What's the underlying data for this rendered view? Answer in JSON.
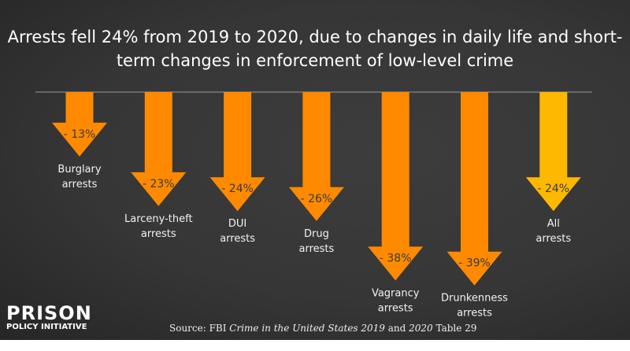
{
  "chart_data": {
    "type": "bar",
    "title": "Arrests fell 24% from 2019 to 2020, due to changes in daily life and short-term changes in enforcement of low-level crime",
    "categories": [
      [
        "Burglary",
        "arrests"
      ],
      [
        "Larceny-theft",
        "arrests"
      ],
      [
        "DUI",
        "arrests"
      ],
      [
        "Drug",
        "arrests"
      ],
      [
        "Vagrancy",
        "arrests"
      ],
      [
        "Drunkenness",
        "arrests"
      ],
      [
        "All",
        "arrests"
      ]
    ],
    "values": [
      -13,
      -23,
      -24,
      -26,
      -38,
      -39,
      -24
    ],
    "value_labels": [
      "- 13%",
      "- 23%",
      "- 24%",
      "- 26%",
      "- 38%",
      "- 39%",
      "- 24%"
    ],
    "colors": {
      "category": "#FF8A00",
      "total": "#FFB800",
      "baseline": "#9a9a9a"
    },
    "grid": false
  },
  "source": {
    "prefix": "Source: FBI ",
    "italic1": "Crime in the United States 2019",
    "mid": " and ",
    "italic2": "2020",
    "suffix": " Table 29"
  },
  "logo": {
    "line1": "PRISON",
    "line2": "POLICY INITIATIVE"
  }
}
